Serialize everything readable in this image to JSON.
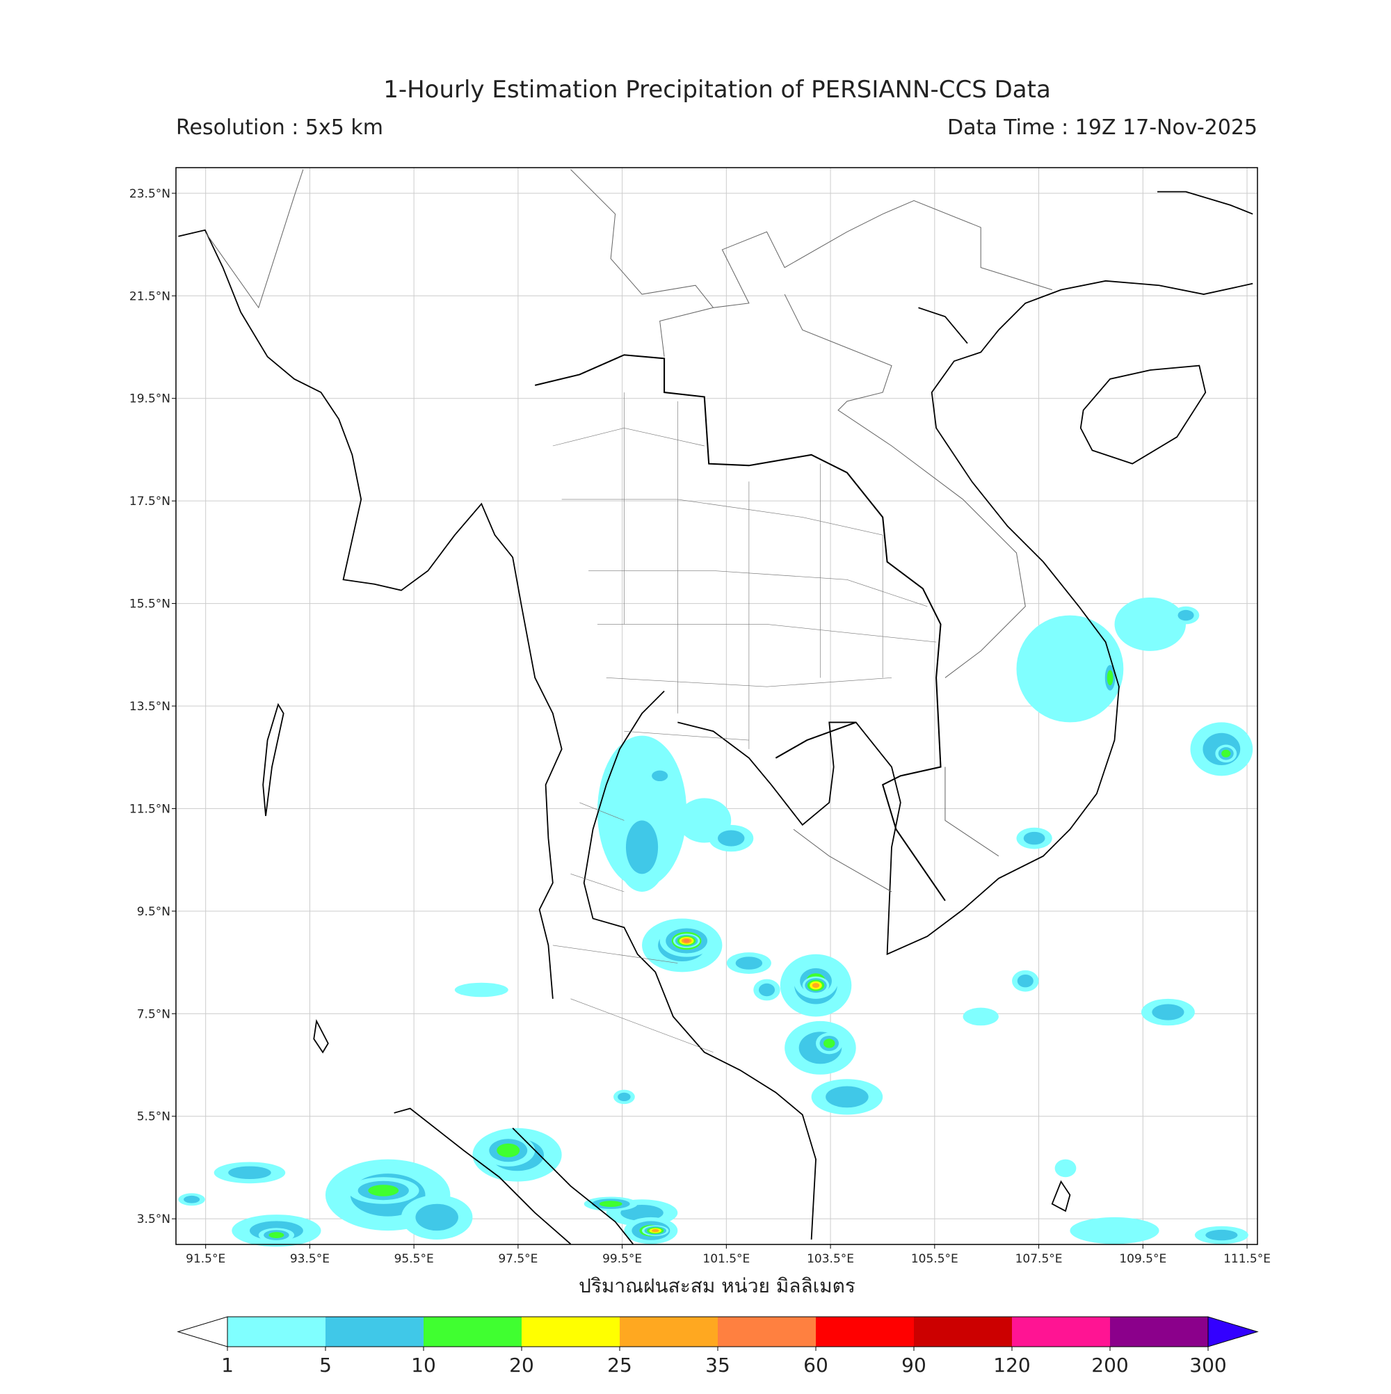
{
  "title": "1-Hourly Estimation Precipitation of PERSIANN-CCS Data",
  "resolution": "Resolution : 5x5 km",
  "data_time": "Data Time : 19Z 17-Nov-2025",
  "map": {
    "xlabel": "ปริมาณฝนสะสม หน่วย มิลลิเมตร",
    "xlim": [
      90.93,
      111.7
    ],
    "ylim": [
      3.0,
      24.0
    ],
    "grid": true,
    "xticks": [
      {
        "value": 91.5,
        "label": "91.5°E"
      },
      {
        "value": 93.5,
        "label": "93.5°E"
      },
      {
        "value": 95.5,
        "label": "95.5°E"
      },
      {
        "value": 97.5,
        "label": "97.5°E"
      },
      {
        "value": 99.5,
        "label": "99.5°E"
      },
      {
        "value": 101.5,
        "label": "101.5°E"
      },
      {
        "value": 103.5,
        "label": "103.5°E"
      },
      {
        "value": 105.5,
        "label": "105.5°E"
      },
      {
        "value": 107.5,
        "label": "107.5°E"
      },
      {
        "value": 109.5,
        "label": "109.5°E"
      },
      {
        "value": 111.5,
        "label": "111.5°E"
      }
    ],
    "yticks": [
      {
        "value": 3.5,
        "label": "3.5°N"
      },
      {
        "value": 5.5,
        "label": "5.5°N"
      },
      {
        "value": 7.5,
        "label": "7.5°N"
      },
      {
        "value": 9.5,
        "label": "9.5°N"
      },
      {
        "value": 11.5,
        "label": "11.5°N"
      },
      {
        "value": 13.5,
        "label": "13.5°N"
      },
      {
        "value": 15.5,
        "label": "15.5°N"
      },
      {
        "value": 17.5,
        "label": "17.5°N"
      },
      {
        "value": 19.5,
        "label": "19.5°N"
      },
      {
        "value": 21.5,
        "label": "21.5°N"
      },
      {
        "value": 23.5,
        "label": "23.5°N"
      }
    ]
  },
  "colorbar": {
    "levels": [
      1,
      5,
      10,
      20,
      25,
      35,
      60,
      90,
      120,
      200,
      300
    ],
    "colors": [
      "#80ffff",
      "#40c8e8",
      "#40ff30",
      "#ffff00",
      "#ffa820",
      "#ff8040",
      "#ff0000",
      "#cc0000",
      "#ff1493",
      "#8b008b"
    ],
    "under_color": "#ffffff",
    "over_color": "#3300ff"
  }
}
